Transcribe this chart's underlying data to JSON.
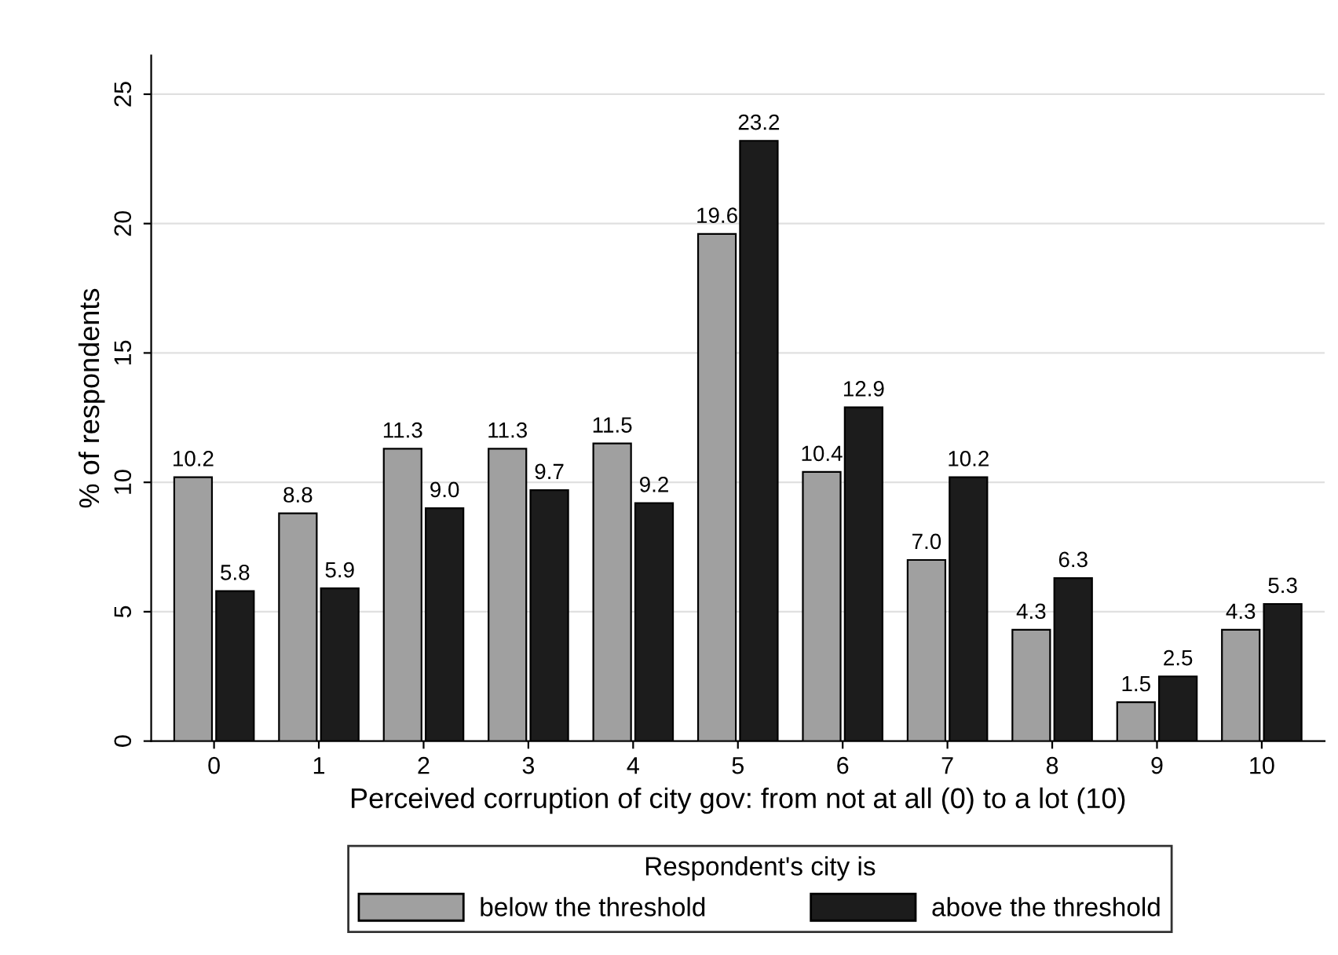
{
  "chart_data": {
    "type": "bar",
    "xlabel": "Perceived corruption of city gov: from not at all (0) to a lot (10)",
    "ylabel": "% of respondents",
    "legend_title": "Respondent's city is",
    "categories": [
      "0",
      "1",
      "2",
      "3",
      "4",
      "5",
      "6",
      "7",
      "8",
      "9",
      "10"
    ],
    "series": [
      {
        "name": "below the threshold",
        "color": "#a0a0a0",
        "values": [
          10.2,
          8.8,
          11.3,
          11.3,
          11.5,
          19.6,
          10.4,
          7.0,
          4.3,
          1.5,
          4.3
        ]
      },
      {
        "name": "above the threshold",
        "color": "#1c1c1c",
        "values": [
          5.8,
          5.9,
          9.0,
          9.7,
          9.2,
          23.2,
          12.9,
          10.2,
          6.3,
          2.5,
          5.3
        ]
      }
    ],
    "value_labels": [
      [
        "10.2",
        "8.8",
        "11.3",
        "11.3",
        "11.5",
        "19.6",
        "10.4",
        "7.0",
        "4.3",
        "1.5",
        "4.3"
      ],
      [
        "5.8",
        "5.9",
        "9.0",
        "9.7",
        "9.2",
        "23.2",
        "12.9",
        "10.2",
        "6.3",
        "2.5",
        "5.3"
      ]
    ],
    "ylim": [
      0,
      26.5
    ],
    "yticks": [
      0,
      5,
      10,
      15,
      20,
      25
    ],
    "grid": "y",
    "legend": "bottom"
  }
}
